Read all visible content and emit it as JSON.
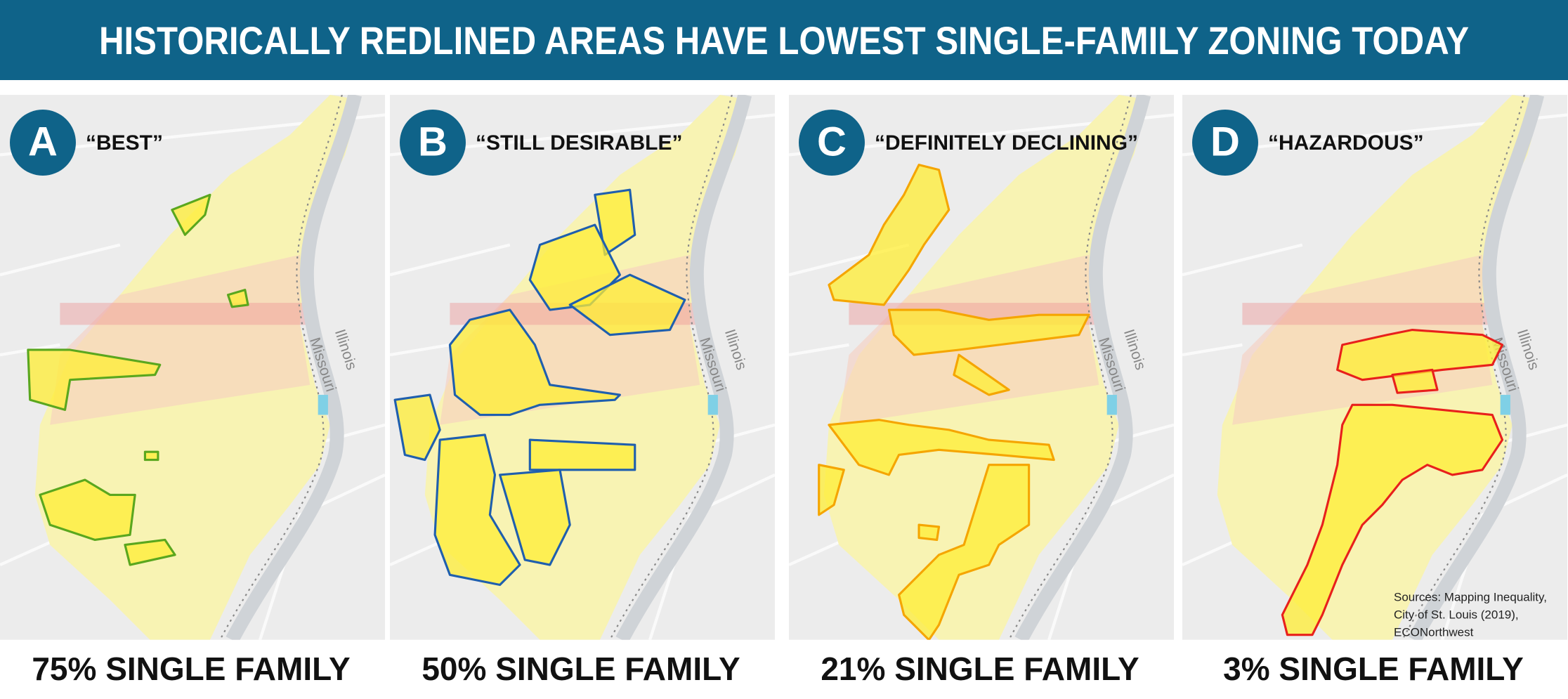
{
  "header": {
    "title": "HISTORICALLY REDLINED AREAS HAVE LOWEST SINGLE-FAMILY ZONING TODAY"
  },
  "map_labels": {
    "river_west": "Missouri",
    "river_east": "Illinois"
  },
  "panels": [
    {
      "letter": "A",
      "grade": "“BEST”",
      "caption": "75% SINGLE FAMILY",
      "outline_color": "#5aa71e"
    },
    {
      "letter": "B",
      "grade": "“STILL DESIRABLE”",
      "caption": "50% SINGLE FAMILY",
      "outline_color": "#1f5fae"
    },
    {
      "letter": "C",
      "grade": "“DEFINITELY DECLINING”",
      "caption": "21% SINGLE FAMILY",
      "outline_color": "#f5a500"
    },
    {
      "letter": "D",
      "grade": "“HAZARDOUS”",
      "caption": "3% SINGLE FAMILY",
      "outline_color": "#e8201c"
    }
  ],
  "sources": [
    "Sources: Mapping Inequality,",
    "City of St. Louis (2019),",
    "ECONorthwest"
  ]
}
